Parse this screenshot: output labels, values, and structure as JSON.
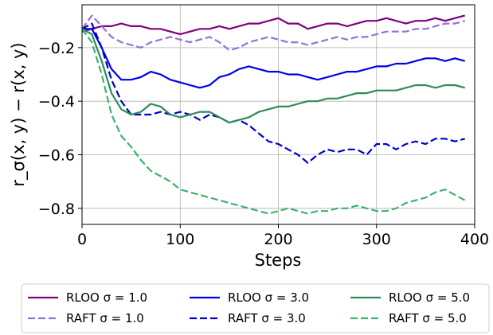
{
  "chart_data": {
    "type": "line",
    "title": "",
    "xlabel": "Steps",
    "ylabel": "r_σ(x, y) − r(x, y)",
    "xlim": [
      0,
      400
    ],
    "ylim": [
      -0.86,
      -0.04
    ],
    "x_ticks": [
      "0",
      "100",
      "200",
      "300",
      "400"
    ],
    "y_ticks": [
      "−0.2",
      "−0.4",
      "−0.6",
      "−0.8"
    ],
    "grid": true,
    "legend_position": "bottom (below plot), 3 columns",
    "series": [
      {
        "name": "RLOO σ = 1.0",
        "color": "#800080",
        "dash": "solid",
        "x": [
          0,
          10,
          20,
          30,
          40,
          50,
          60,
          70,
          80,
          90,
          100,
          110,
          120,
          130,
          140,
          150,
          160,
          170,
          180,
          190,
          200,
          210,
          220,
          230,
          240,
          250,
          260,
          270,
          280,
          290,
          300,
          310,
          320,
          330,
          340,
          350,
          360,
          370,
          380,
          390
        ],
        "y": [
          -0.14,
          -0.13,
          -0.12,
          -0.12,
          -0.11,
          -0.12,
          -0.12,
          -0.13,
          -0.13,
          -0.14,
          -0.15,
          -0.14,
          -0.13,
          -0.13,
          -0.12,
          -0.13,
          -0.12,
          -0.11,
          -0.11,
          -0.1,
          -0.09,
          -0.11,
          -0.11,
          -0.13,
          -0.12,
          -0.11,
          -0.11,
          -0.12,
          -0.11,
          -0.1,
          -0.1,
          -0.09,
          -0.1,
          -0.11,
          -0.1,
          -0.1,
          -0.09,
          -0.1,
          -0.09,
          -0.08
        ]
      },
      {
        "name": "RAFT σ = 1.0",
        "color": "#9370DB",
        "dash": "dashed",
        "x": [
          0,
          10,
          20,
          30,
          40,
          50,
          60,
          70,
          80,
          90,
          100,
          110,
          120,
          130,
          140,
          150,
          160,
          170,
          180,
          190,
          200,
          210,
          220,
          230,
          240,
          250,
          260,
          270,
          280,
          290,
          300,
          310,
          320,
          330,
          340,
          350,
          360,
          370,
          380,
          390
        ],
        "y": [
          -0.13,
          -0.08,
          -0.12,
          -0.16,
          -0.18,
          -0.19,
          -0.2,
          -0.18,
          -0.17,
          -0.16,
          -0.17,
          -0.18,
          -0.17,
          -0.16,
          -0.18,
          -0.21,
          -0.2,
          -0.18,
          -0.17,
          -0.16,
          -0.17,
          -0.18,
          -0.18,
          -0.19,
          -0.18,
          -0.17,
          -0.16,
          -0.17,
          -0.16,
          -0.16,
          -0.15,
          -0.14,
          -0.14,
          -0.14,
          -0.13,
          -0.13,
          -0.12,
          -0.11,
          -0.11,
          -0.1
        ]
      },
      {
        "name": "RLOO σ = 3.0",
        "color": "#0000EE",
        "dash": "solid",
        "x": [
          0,
          10,
          20,
          30,
          40,
          50,
          60,
          70,
          80,
          90,
          100,
          110,
          120,
          130,
          140,
          150,
          160,
          170,
          180,
          190,
          200,
          210,
          220,
          230,
          240,
          250,
          260,
          270,
          280,
          290,
          300,
          310,
          320,
          330,
          340,
          350,
          360,
          370,
          380,
          390
        ],
        "y": [
          -0.13,
          -0.13,
          -0.2,
          -0.28,
          -0.32,
          -0.32,
          -0.31,
          -0.29,
          -0.3,
          -0.32,
          -0.33,
          -0.34,
          -0.35,
          -0.34,
          -0.31,
          -0.3,
          -0.28,
          -0.27,
          -0.28,
          -0.29,
          -0.29,
          -0.3,
          -0.3,
          -0.31,
          -0.32,
          -0.31,
          -0.3,
          -0.29,
          -0.29,
          -0.28,
          -0.27,
          -0.27,
          -0.26,
          -0.26,
          -0.25,
          -0.24,
          -0.24,
          -0.25,
          -0.24,
          -0.25
        ]
      },
      {
        "name": "RAFT σ = 3.0",
        "color": "#0000CD",
        "dash": "dashed",
        "x": [
          0,
          10,
          20,
          30,
          40,
          50,
          60,
          70,
          80,
          90,
          100,
          110,
          120,
          130,
          140,
          150,
          160,
          170,
          180,
          190,
          200,
          210,
          220,
          230,
          240,
          250,
          260,
          270,
          280,
          290,
          300,
          310,
          320,
          330,
          340,
          350,
          360,
          370,
          380,
          390
        ],
        "y": [
          -0.13,
          -0.11,
          -0.2,
          -0.32,
          -0.4,
          -0.45,
          -0.45,
          -0.45,
          -0.44,
          -0.45,
          -0.44,
          -0.45,
          -0.47,
          -0.45,
          -0.46,
          -0.48,
          -0.47,
          -0.49,
          -0.52,
          -0.55,
          -0.56,
          -0.58,
          -0.6,
          -0.63,
          -0.6,
          -0.58,
          -0.59,
          -0.58,
          -0.58,
          -0.6,
          -0.56,
          -0.56,
          -0.58,
          -0.56,
          -0.55,
          -0.56,
          -0.54,
          -0.54,
          -0.55,
          -0.54
        ]
      },
      {
        "name": "RLOO σ = 5.0",
        "color": "#2E8B57",
        "dash": "solid",
        "x": [
          0,
          10,
          20,
          30,
          40,
          50,
          60,
          70,
          80,
          90,
          100,
          110,
          120,
          130,
          140,
          150,
          160,
          170,
          180,
          190,
          200,
          210,
          220,
          230,
          240,
          250,
          260,
          270,
          280,
          290,
          300,
          310,
          320,
          330,
          340,
          350,
          360,
          370,
          380,
          390
        ],
        "y": [
          -0.13,
          -0.15,
          -0.25,
          -0.37,
          -0.43,
          -0.45,
          -0.44,
          -0.41,
          -0.42,
          -0.45,
          -0.46,
          -0.45,
          -0.44,
          -0.44,
          -0.46,
          -0.48,
          -0.47,
          -0.46,
          -0.44,
          -0.43,
          -0.42,
          -0.42,
          -0.41,
          -0.4,
          -0.4,
          -0.39,
          -0.39,
          -0.38,
          -0.37,
          -0.37,
          -0.36,
          -0.36,
          -0.36,
          -0.35,
          -0.34,
          -0.34,
          -0.35,
          -0.34,
          -0.34,
          -0.35
        ]
      },
      {
        "name": "RAFT σ = 5.0",
        "color": "#3CB371",
        "dash": "dashed",
        "x": [
          0,
          10,
          20,
          30,
          40,
          50,
          60,
          70,
          80,
          90,
          100,
          110,
          120,
          130,
          140,
          150,
          160,
          170,
          180,
          190,
          200,
          210,
          220,
          230,
          240,
          250,
          260,
          270,
          280,
          290,
          300,
          310,
          320,
          330,
          340,
          350,
          360,
          370,
          380,
          390
        ],
        "y": [
          -0.13,
          -0.18,
          -0.3,
          -0.45,
          -0.53,
          -0.57,
          -0.62,
          -0.66,
          -0.68,
          -0.7,
          -0.73,
          -0.74,
          -0.75,
          -0.76,
          -0.77,
          -0.78,
          -0.79,
          -0.8,
          -0.81,
          -0.82,
          -0.81,
          -0.8,
          -0.81,
          -0.82,
          -0.81,
          -0.81,
          -0.8,
          -0.8,
          -0.79,
          -0.8,
          -0.81,
          -0.81,
          -0.8,
          -0.78,
          -0.77,
          -0.76,
          -0.74,
          -0.73,
          -0.75,
          -0.77
        ]
      }
    ]
  }
}
